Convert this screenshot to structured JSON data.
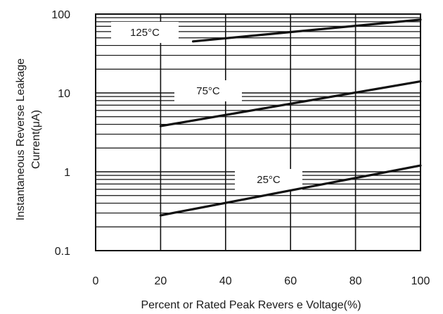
{
  "chart_data": {
    "type": "line",
    "title": "",
    "xlabel": "Percent or Rated Peak Revers e Voltage(%)",
    "ylabel_lines": [
      "Instantaneous Reverse Leakage",
      "Current(μA)"
    ],
    "x_scale": "linear",
    "y_scale": "log",
    "xlim": [
      0,
      100
    ],
    "ylim": [
      0.1,
      100
    ],
    "x_ticks": [
      0,
      20,
      40,
      60,
      80,
      100
    ],
    "x_tick_labels": [
      "0",
      "20",
      "40",
      "60",
      "80",
      "100"
    ],
    "y_ticks": [
      0.1,
      1,
      10,
      100
    ],
    "y_tick_labels": [
      "0.1",
      "1",
      "10",
      "100"
    ],
    "grid": true,
    "series": [
      {
        "name": "125°C",
        "x": [
          30,
          100
        ],
        "y": [
          45,
          85
        ]
      },
      {
        "name": "75°C",
        "x": [
          20,
          100
        ],
        "y": [
          3.8,
          14
        ]
      },
      {
        "name": "25°C",
        "x": [
          20,
          100
        ],
        "y": [
          0.28,
          1.2
        ]
      }
    ],
    "colors": {
      "line": "#111111",
      "grid": "#111111",
      "background": "#ffffff"
    }
  }
}
